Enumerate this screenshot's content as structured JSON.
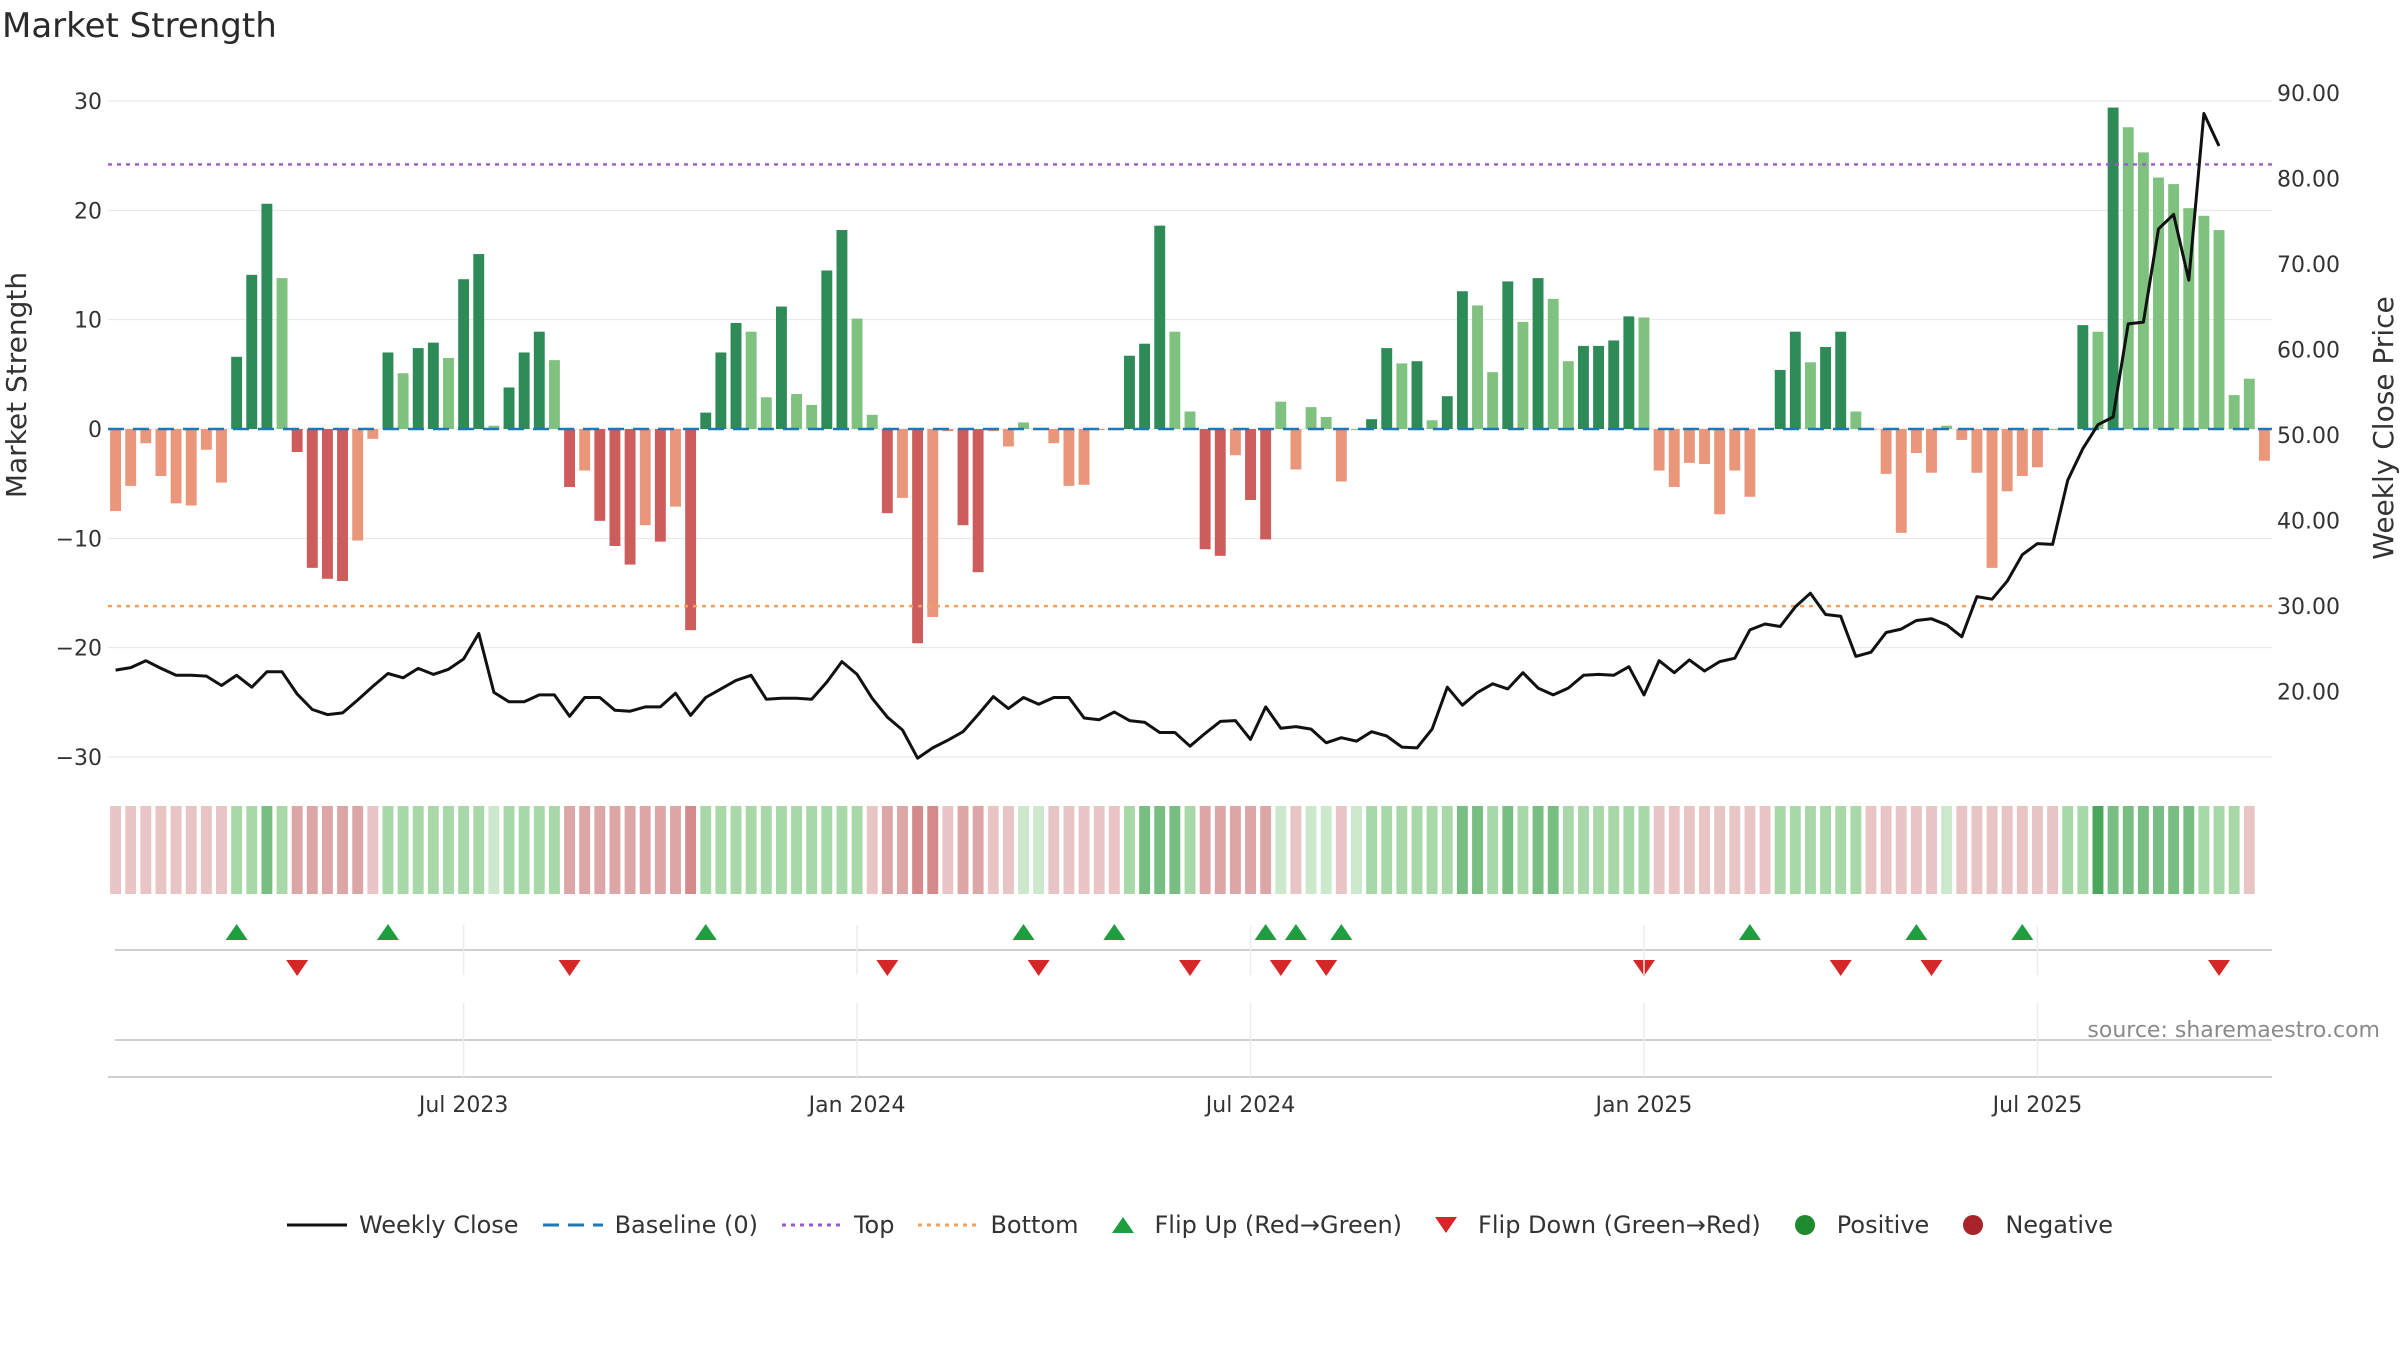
{
  "title": "Market Strength",
  "source": "source: sharemaestro.com",
  "colors": {
    "pos_dark": "#2e8b57",
    "pos_light": "#7fc17f",
    "neg_dark": "#cd5c5c",
    "neg_light": "#e9967a",
    "top_line": "#9b59d0",
    "bottom_line": "#f0a060",
    "baseline": "#1f77b4",
    "price": "#111111",
    "flip_up": "#1e9e3e",
    "flip_down": "#d62728"
  },
  "chart_data": {
    "type": "bar",
    "title": "Market Strength",
    "ylabel": "Market Strength",
    "y2label": "Weekly Close Price",
    "ylim": [
      -30,
      30
    ],
    "y2lim": [
      10,
      90
    ],
    "yticks": [
      "30",
      "20",
      "10",
      "0",
      "−10",
      "−20",
      "−30"
    ],
    "y2ticks": [
      "90.00",
      "80.00",
      "70.00",
      "60.00",
      "50.00",
      "40.00",
      "30.00",
      "20.00"
    ],
    "xticks": [
      "Jul 2023",
      "Jan 2024",
      "Jul 2024",
      "Jan 2025",
      "Jul 2025"
    ],
    "xtick_week_index": [
      23,
      49,
      75,
      101,
      127
    ],
    "start_week": "2023-01-08",
    "top_threshold": 24.2,
    "bottom_threshold": -16.2,
    "baseline": 0,
    "strength": [
      -7.5,
      -5.2,
      -1.3,
      -4.3,
      -6.8,
      -7,
      -1.9,
      -4.9,
      6.6,
      14.1,
      20.6,
      13.8,
      -2.1,
      -12.7,
      -13.7,
      -13.9,
      -10.2,
      -0.9,
      7,
      5.1,
      7.4,
      7.9,
      6.5,
      13.7,
      16,
      0.3,
      3.8,
      7,
      8.9,
      6.3,
      -5.3,
      -3.8,
      -8.4,
      -10.7,
      -12.4,
      -8.8,
      -10.3,
      -7.1,
      -18.4,
      1.5,
      7,
      9.7,
      8.9,
      2.9,
      11.2,
      3.2,
      2.2,
      14.5,
      18.2,
      10.1,
      1.3,
      -7.7,
      -6.3,
      -19.6,
      -17.2,
      -0.2,
      -8.8,
      -13.1,
      -0.2,
      -1.6,
      0.6,
      -0.1,
      -1.3,
      -5.2,
      -5.1,
      -0.1,
      -0.1,
      6.7,
      7.8,
      18.6,
      8.9,
      1.6,
      -11,
      -11.6,
      -2.4,
      -6.5,
      -10.1,
      2.5,
      -3.7,
      2,
      1.1,
      -4.8,
      -0.1,
      0.9,
      7.4,
      6,
      6.2,
      0.8,
      3,
      12.6,
      11.3,
      5.2,
      13.5,
      9.8,
      13.8,
      11.9,
      6.2,
      7.6,
      7.6,
      8.1,
      10.3,
      10.2,
      -3.8,
      -5.3,
      -3.1,
      -3.2,
      -7.8,
      -3.8,
      -6.2,
      -0.1,
      5.4,
      8.9,
      6.1,
      7.5,
      8.9,
      1.6,
      -0.1,
      -4.1,
      -9.5,
      -2.2,
      -4,
      0.3,
      -1,
      -4,
      -12.7,
      -5.7,
      -4.3,
      -3.5,
      -0.1,
      -0.1,
      9.5,
      8.9,
      29.4,
      27.6,
      25.3,
      23,
      22.4,
      20.2,
      19.5,
      18.2,
      3.1,
      4.6,
      -2.9
    ],
    "price": [
      22.5,
      22.8,
      23.6,
      22.7,
      21.9,
      21.9,
      21.8,
      20.7,
      21.9,
      20.5,
      22.3,
      22.3,
      19.7,
      17.9,
      17.3,
      17.5,
      19,
      20.6,
      22.1,
      21.6,
      22.7,
      22,
      22.6,
      23.8,
      26.8,
      19.9,
      18.8,
      18.8,
      19.6,
      19.6,
      17.1,
      19.3,
      19.3,
      17.8,
      17.7,
      18.2,
      18.2,
      19.8,
      17.2,
      19.3,
      20.3,
      21.3,
      21.9,
      19.1,
      19.2,
      19.2,
      19.1,
      21.1,
      23.5,
      22,
      19.2,
      17,
      15.5,
      12.2,
      13.4,
      14.3,
      15.3,
      17.3,
      19.4,
      18,
      19.3,
      18.5,
      19.3,
      19.3,
      16.9,
      16.7,
      17.6,
      16.6,
      16.4,
      15.2,
      15.2,
      13.6,
      15.1,
      16.5,
      16.6,
      14.4,
      18.2,
      15.7,
      15.9,
      15.6,
      14,
      14.6,
      14.2,
      15.3,
      14.8,
      13.5,
      13.4,
      15.6,
      20.5,
      18.4,
      19.9,
      20.9,
      20.3,
      22.2,
      20.4,
      19.6,
      20.4,
      21.9,
      22,
      21.9,
      22.9,
      19.6,
      23.6,
      22.2,
      23.7,
      22.4,
      23.5,
      23.9,
      27.2,
      27.9,
      27.6,
      29.9,
      31.5,
      29,
      28.8,
      24.1,
      24.6,
      26.9,
      27.3,
      28.3,
      28.5,
      27.8,
      26.4,
      31.1,
      30.8,
      32.9,
      36,
      37.3,
      37.2,
      44.7,
      48.4,
      51.2,
      52.1,
      63,
      63.2,
      74.1,
      75.8,
      68.1,
      87.6,
      83.8
    ],
    "panel": [
      -1,
      -1,
      -1,
      -1,
      -1,
      -1,
      -1,
      -1,
      2,
      2,
      3,
      2,
      -2,
      -2,
      -2,
      -2,
      -2,
      -1,
      2,
      2,
      2,
      2,
      2,
      2,
      2,
      1,
      2,
      2,
      2,
      2,
      -2,
      -2,
      -2,
      -2,
      -2,
      -2,
      -2,
      -2,
      -3,
      2,
      2,
      2,
      2,
      2,
      2,
      2,
      2,
      2,
      2,
      2,
      -1,
      -2,
      -2,
      -3,
      -3,
      -1,
      -2,
      -2,
      -1,
      -1,
      1,
      1,
      -1,
      -1,
      -1,
      -1,
      -1,
      2,
      3,
      3,
      3,
      2,
      -2,
      -2,
      -2,
      -2,
      -2,
      1,
      -1,
      1,
      1,
      -1,
      1,
      2,
      2,
      2,
      2,
      2,
      2,
      3,
      3,
      2,
      3,
      2,
      3,
      3,
      2,
      2,
      2,
      2,
      2,
      2,
      -1,
      -1,
      -1,
      -1,
      -1,
      -1,
      -1,
      -1,
      2,
      2,
      2,
      2,
      2,
      2,
      -1,
      -1,
      -1,
      -1,
      -1,
      1,
      -1,
      -1,
      -1,
      -1,
      -1,
      -1,
      -1,
      2,
      2,
      4,
      3,
      3,
      3,
      3,
      3,
      3,
      2,
      2,
      2,
      -1
    ],
    "flip_up": [
      8,
      18,
      39,
      60,
      66,
      76,
      78,
      81,
      108,
      119,
      126
    ],
    "flip_down": [
      12,
      30,
      51,
      61,
      71,
      77,
      80,
      101,
      114,
      120,
      139
    ]
  },
  "legend": [
    {
      "key": "weekly-close",
      "label": "Weekly Close",
      "symbol": "line-solid",
      "color": "#111111"
    },
    {
      "key": "baseline",
      "label": "Baseline (0)",
      "symbol": "line-dash",
      "color": "#1f77b4"
    },
    {
      "key": "top",
      "label": "Top",
      "symbol": "line-dot",
      "color": "#9b59d0"
    },
    {
      "key": "bottom",
      "label": "Bottom",
      "symbol": "line-dot",
      "color": "#f0a060"
    },
    {
      "key": "flip-up",
      "label": "Flip Up (Red→Green)",
      "symbol": "triangle-up",
      "color": "#1e9e3e"
    },
    {
      "key": "flip-down",
      "label": "Flip Down (Green→Red)",
      "symbol": "triangle-down",
      "color": "#d62728"
    },
    {
      "key": "positive",
      "label": "Positive",
      "symbol": "circle",
      "color": "#1e8a2e"
    },
    {
      "key": "negative",
      "label": "Negative",
      "symbol": "circle",
      "color": "#a8232a"
    }
  ]
}
